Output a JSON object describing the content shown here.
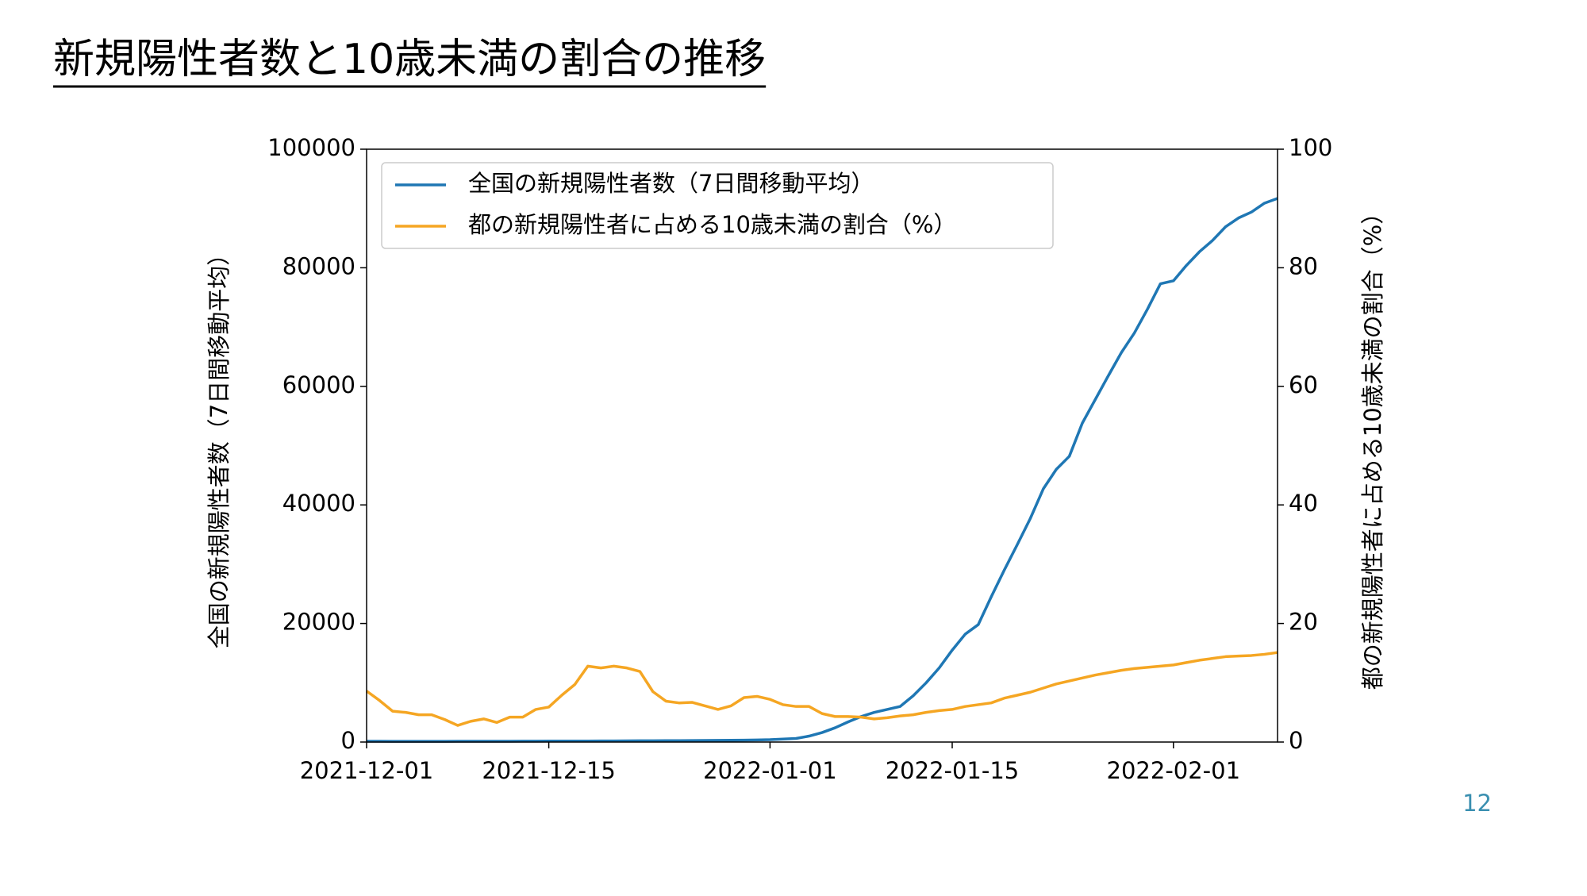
{
  "chart_data": {
    "type": "line",
    "title": "新規陽性者数と10歳未満の割合の推移",
    "y_label": "全国の新規陽性者数（7日間移動平均）",
    "y2_label": "都の新規陽性者に占める10歳未満の割合（%）",
    "x": [
      "2021-12-01",
      "2021-12-02",
      "2021-12-03",
      "2021-12-04",
      "2021-12-05",
      "2021-12-06",
      "2021-12-07",
      "2021-12-08",
      "2021-12-09",
      "2021-12-10",
      "2021-12-11",
      "2021-12-12",
      "2021-12-13",
      "2021-12-14",
      "2021-12-15",
      "2021-12-16",
      "2021-12-17",
      "2021-12-18",
      "2021-12-19",
      "2021-12-20",
      "2021-12-21",
      "2021-12-22",
      "2021-12-23",
      "2021-12-24",
      "2021-12-25",
      "2021-12-26",
      "2021-12-27",
      "2021-12-28",
      "2021-12-29",
      "2021-12-30",
      "2021-12-31",
      "2022-01-01",
      "2022-01-02",
      "2022-01-03",
      "2022-01-04",
      "2022-01-05",
      "2022-01-06",
      "2022-01-07",
      "2022-01-08",
      "2022-01-09",
      "2022-01-10",
      "2022-01-11",
      "2022-01-12",
      "2022-01-13",
      "2022-01-14",
      "2022-01-15",
      "2022-01-16",
      "2022-01-17",
      "2022-01-18",
      "2022-01-19",
      "2022-01-20",
      "2022-01-21",
      "2022-01-22",
      "2022-01-23",
      "2022-01-24",
      "2022-01-25",
      "2022-01-26",
      "2022-01-27",
      "2022-01-28",
      "2022-01-29",
      "2022-01-30",
      "2022-01-31",
      "2022-02-01",
      "2022-02-02",
      "2022-02-03",
      "2022-02-04",
      "2022-02-05",
      "2022-02-06",
      "2022-02-07",
      "2022-02-08",
      "2022-02-09"
    ],
    "series": [
      {
        "name": "全国の新規陽性者数（7日間移動平均）",
        "color": "#1f77b4",
        "values": [
          130,
          130,
          120,
          120,
          120,
          120,
          120,
          130,
          130,
          130,
          140,
          140,
          150,
          150,
          160,
          160,
          170,
          170,
          180,
          190,
          200,
          210,
          220,
          230,
          240,
          250,
          260,
          280,
          300,
          320,
          350,
          400,
          500,
          600,
          1000,
          1600,
          2400,
          3400,
          4300,
          5000,
          5500,
          6000,
          7800,
          10000,
          12500,
          15500,
          18200,
          19800,
          24500,
          29000,
          33300,
          37700,
          42700,
          46000,
          48200,
          53800,
          57800,
          61800,
          65700,
          69000,
          73000,
          77300,
          77800,
          80400,
          82700,
          84600,
          86900,
          88400,
          89400,
          90900,
          91700
        ]
      },
      {
        "name": "都の新規陽性者に占める10歳未満の割合（%）",
        "color": "#f5a623",
        "axis": "y2",
        "values": [
          8.6,
          7.0,
          5.2,
          5.0,
          4.6,
          4.6,
          3.8,
          2.8,
          3.5,
          3.9,
          3.3,
          4.2,
          4.2,
          5.5,
          5.9,
          7.9,
          9.7,
          12.8,
          12.5,
          12.8,
          12.5,
          11.9,
          8.5,
          6.9,
          6.6,
          6.7,
          6.1,
          5.5,
          6.1,
          7.5,
          7.7,
          7.2,
          6.3,
          6.0,
          6.0,
          4.8,
          4.3,
          4.3,
          4.2,
          3.9,
          4.1,
          4.4,
          4.6,
          5.0,
          5.3,
          5.5,
          6.0,
          6.3,
          6.6,
          7.4,
          7.9,
          8.4,
          9.1,
          9.8,
          10.3,
          10.8,
          11.3,
          11.7,
          12.1,
          12.4,
          12.6,
          12.8,
          13.0,
          13.4,
          13.8,
          14.1,
          14.4,
          14.5,
          14.6,
          14.8,
          15.1
        ]
      }
    ],
    "xlim": [
      "2021-12-01",
      "2022-02-09"
    ],
    "xticks": [
      "2021-12-01",
      "2021-12-15",
      "2022-01-01",
      "2022-01-15",
      "2022-02-01"
    ],
    "ylim": [
      0,
      100000
    ],
    "yticks": [
      0,
      20000,
      40000,
      60000,
      80000,
      100000
    ],
    "y2lim": [
      0,
      100
    ],
    "y2ticks": [
      0,
      20,
      40,
      60,
      80,
      100
    ],
    "legend": "upper left"
  },
  "page_number": "12"
}
